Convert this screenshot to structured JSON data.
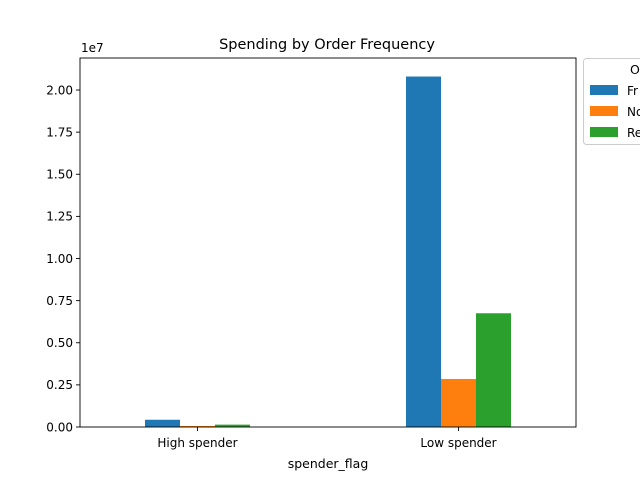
{
  "chart_data": {
    "type": "bar",
    "title": "Spending by Order Frequency",
    "xlabel": "spender_flag",
    "ylabel": "",
    "y_offset_label": "1e7",
    "categories": [
      "High spender",
      "Low spender"
    ],
    "ylim": [
      0,
      21900000
    ],
    "yticks": [
      0,
      2500000,
      5000000,
      7500000,
      10000000,
      12500000,
      15000000,
      17500000,
      20000000
    ],
    "ytick_labels": [
      "0.00",
      "0.25",
      "0.50",
      "0.75",
      "1.00",
      "1.25",
      "1.50",
      "1.75",
      "2.00"
    ],
    "legend": {
      "placement": "outside-upper-right",
      "title": "O",
      "entries": [
        "Fr",
        "No",
        "Re"
      ]
    },
    "series": [
      {
        "name": "Fr",
        "color": "#1f77b4",
        "values": [
          430000,
          20800000
        ]
      },
      {
        "name": "No",
        "color": "#ff7f0e",
        "values": [
          60000,
          2850000
        ]
      },
      {
        "name": "Re",
        "color": "#2ca02c",
        "values": [
          140000,
          6750000
        ]
      }
    ],
    "grid": false
  }
}
